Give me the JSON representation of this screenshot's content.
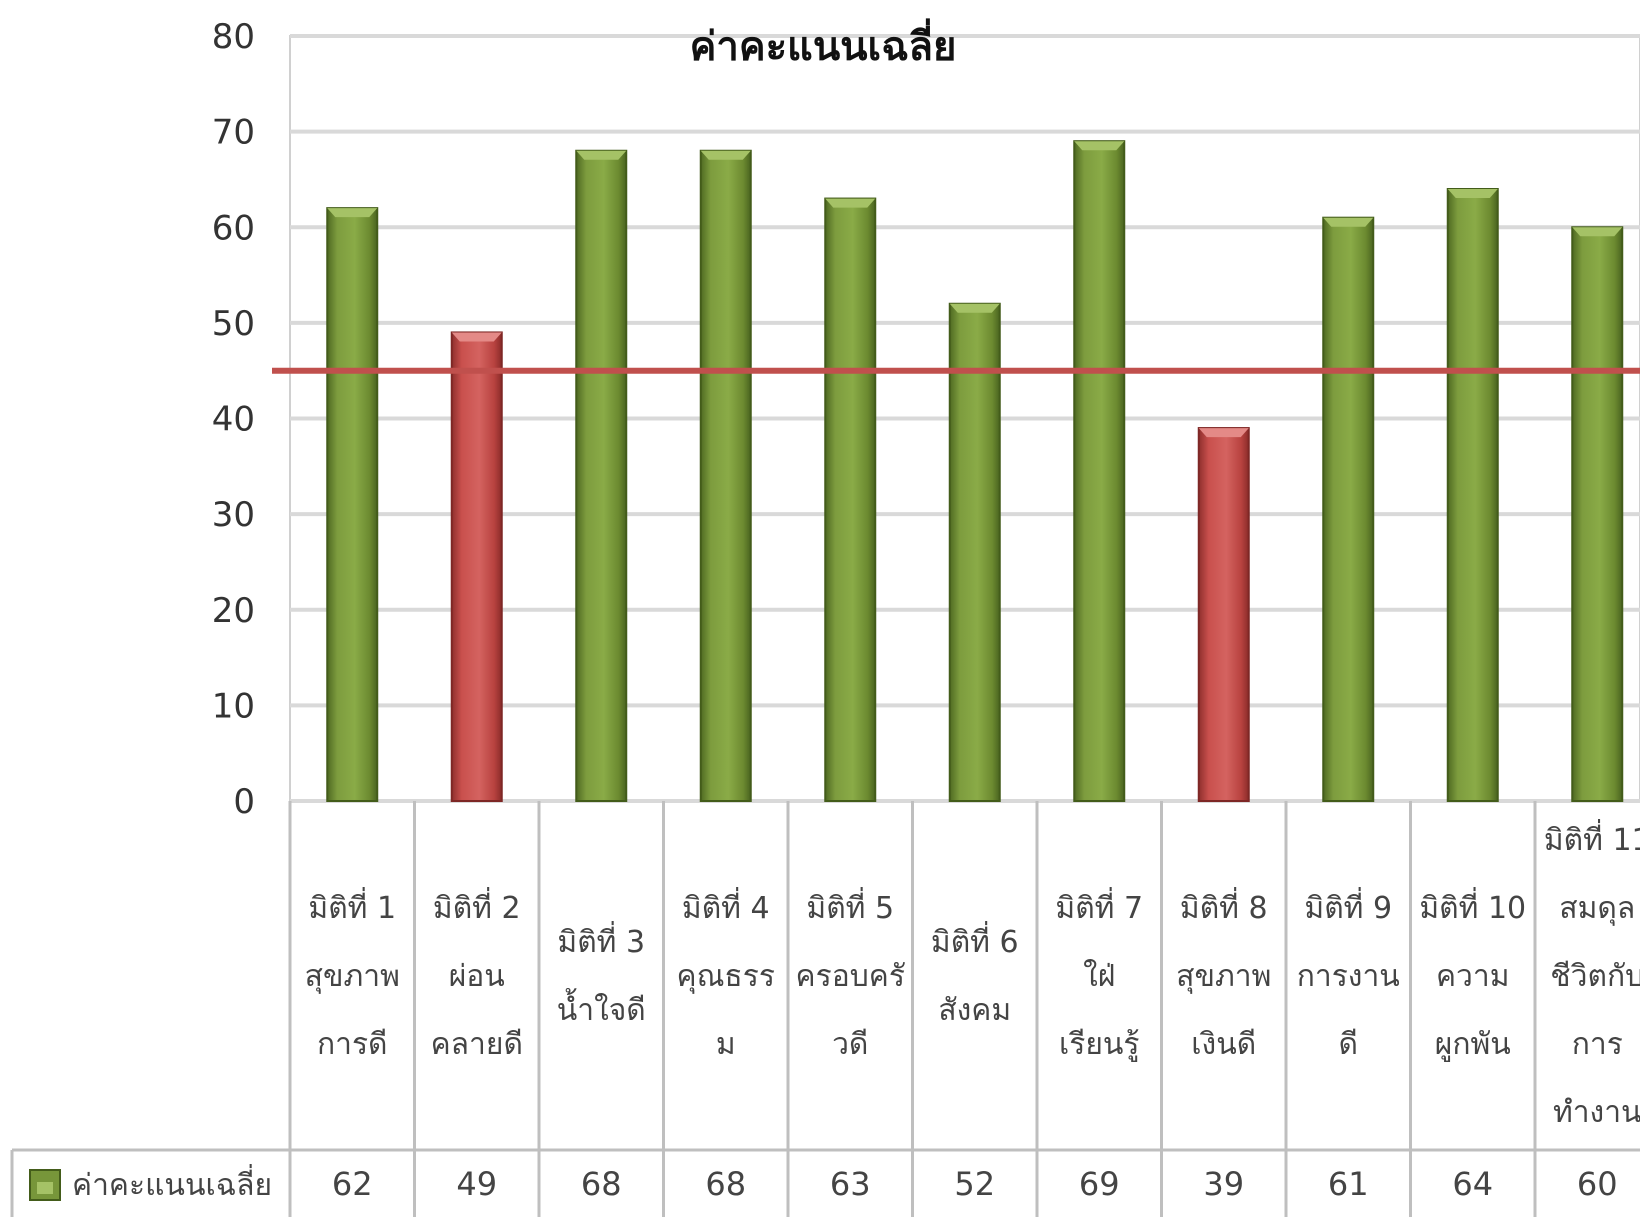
{
  "chart_data": {
    "type": "bar",
    "title": "ค่าคะแนนเฉลี่ย",
    "categories": [
      [
        "มิติที่ 1",
        "สุขภาพ",
        "การดี"
      ],
      [
        "มิติที่ 2",
        "ผ่อน",
        "คลายดี"
      ],
      [
        "มิติที่ 3",
        "น้ำใจดี"
      ],
      [
        "มิติที่ 4",
        "คุณธรร",
        "ม"
      ],
      [
        "มิติที่ 5",
        "ครอบครั",
        "วดี"
      ],
      [
        "มิติที่ 6",
        "สังคม"
      ],
      [
        "มิติที่ 7",
        "ใฝ่",
        "เรียนรู้"
      ],
      [
        "มิติที่ 8",
        "สุขภาพ",
        "เงินดี"
      ],
      [
        "มิติที่ 9",
        "การงาน",
        "ดี"
      ],
      [
        "มิติที่ 10",
        "ความ",
        "ผูกพัน"
      ],
      [
        "มิติที่ 11",
        "สมดุล",
        "ชีวิตกับ",
        "การ",
        "ทำงาน"
      ]
    ],
    "series": [
      {
        "name": "ค่าคะแนนเฉลี่ย",
        "values": [
          62,
          49,
          68,
          68,
          63,
          52,
          69,
          39,
          61,
          64,
          60
        ]
      }
    ],
    "value_labels": [
      "62",
      "49",
      "68",
      "68",
      "63",
      "52",
      "69",
      "39",
      "61",
      "64",
      "60"
    ],
    "threshold": 45,
    "highlighted_categories": [
      1,
      7
    ],
    "ylim": [
      0,
      80
    ],
    "yticks": [
      0,
      10,
      20,
      30,
      40,
      50,
      60,
      70,
      80
    ],
    "grid": true,
    "legend": "bottom-left (data table)",
    "colors": {
      "bar": "#77963a",
      "bar_highlight": "#c9504d",
      "threshold_line": "#c0504d",
      "grid": "#d9d9d9",
      "table_border": "#bfbfbf"
    }
  }
}
